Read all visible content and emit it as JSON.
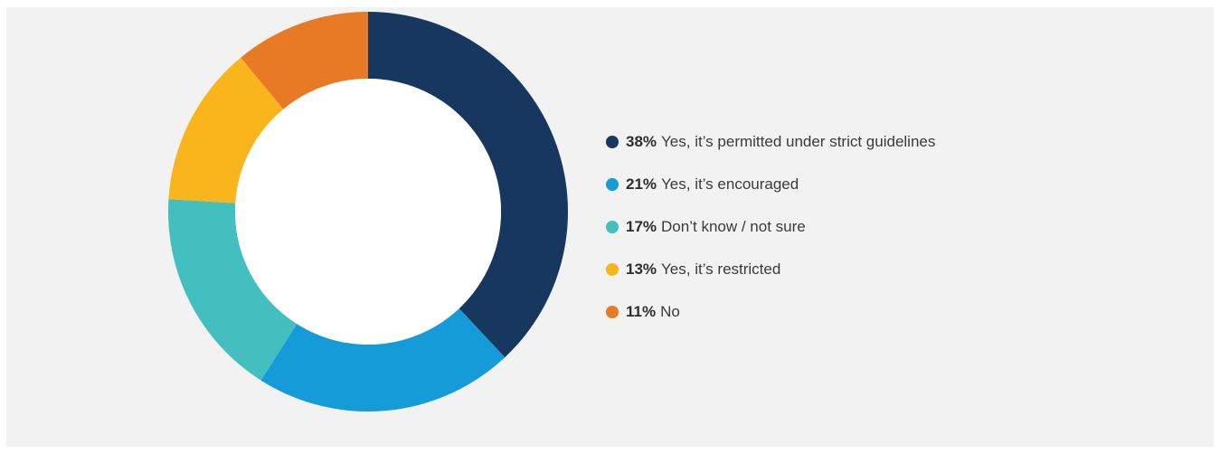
{
  "chart_data": {
    "type": "pie",
    "variant": "donut",
    "title": "",
    "categories": [
      "Yes, it’s permitted under strict guidelines",
      "Yes, it’s encouraged",
      "Don’t know / not sure",
      "Yes, it’s restricted",
      "No"
    ],
    "values": [
      38,
      21,
      17,
      13,
      11
    ],
    "value_labels": [
      "38%",
      "21%",
      "17%",
      "13%",
      "11%"
    ],
    "colors": [
      "#17375f",
      "#159bd7",
      "#43bfbf",
      "#fab51c",
      "#e87a26"
    ],
    "legend_position": "right"
  }
}
